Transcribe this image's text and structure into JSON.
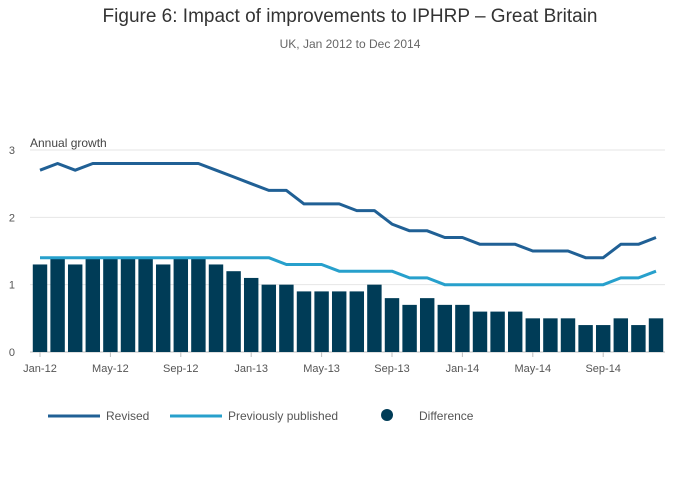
{
  "chart_data": {
    "type": "bar",
    "title": "Figure 6: Impact of improvements to IPHRP – Great Britain",
    "subtitle": "UK, Jan 2012 to Dec 2014",
    "ylabel": "Annual growth",
    "ylim": [
      0,
      3
    ],
    "yticks": [
      "0",
      "1",
      "2",
      "3"
    ],
    "xtick_labels": [
      {
        "index": 0,
        "label": "Jan-12"
      },
      {
        "index": 4,
        "label": "May-12"
      },
      {
        "index": 8,
        "label": "Sep-12"
      },
      {
        "index": 12,
        "label": "Jan-13"
      },
      {
        "index": 16,
        "label": "May-13"
      },
      {
        "index": 20,
        "label": "Sep-13"
      },
      {
        "index": 24,
        "label": "Jan-14"
      },
      {
        "index": 28,
        "label": "May-14"
      },
      {
        "index": 32,
        "label": "Sep-14"
      }
    ],
    "x_count": 36,
    "grid": true,
    "legend_position": "bottom",
    "series": [
      {
        "name": "Revised",
        "kind": "line",
        "color": "#206095",
        "values": [
          2.7,
          2.8,
          2.7,
          2.8,
          2.8,
          2.8,
          2.8,
          2.8,
          2.8,
          2.8,
          2.7,
          2.6,
          2.5,
          2.4,
          2.4,
          2.2,
          2.2,
          2.2,
          2.1,
          2.1,
          1.9,
          1.8,
          1.8,
          1.7,
          1.7,
          1.6,
          1.6,
          1.6,
          1.5,
          1.5,
          1.5,
          1.4,
          1.4,
          1.6,
          1.6,
          1.7
        ]
      },
      {
        "name": "Previously published",
        "kind": "line",
        "color": "#27a0cc",
        "values": [
          1.4,
          1.4,
          1.4,
          1.4,
          1.4,
          1.4,
          1.4,
          1.4,
          1.4,
          1.4,
          1.4,
          1.4,
          1.4,
          1.4,
          1.3,
          1.3,
          1.3,
          1.2,
          1.2,
          1.2,
          1.2,
          1.1,
          1.1,
          1.0,
          1.0,
          1.0,
          1.0,
          1.0,
          1.0,
          1.0,
          1.0,
          1.0,
          1.0,
          1.1,
          1.1,
          1.2
        ]
      },
      {
        "name": "Difference",
        "kind": "bar",
        "color": "#003c57",
        "values": [
          1.3,
          1.4,
          1.3,
          1.4,
          1.4,
          1.4,
          1.4,
          1.3,
          1.4,
          1.4,
          1.3,
          1.2,
          1.1,
          1.0,
          1.0,
          0.9,
          0.9,
          0.9,
          0.9,
          1.0,
          0.8,
          0.7,
          0.8,
          0.7,
          0.7,
          0.6,
          0.6,
          0.6,
          0.5,
          0.5,
          0.5,
          0.4,
          0.4,
          0.5,
          0.4,
          0.5
        ]
      }
    ]
  }
}
